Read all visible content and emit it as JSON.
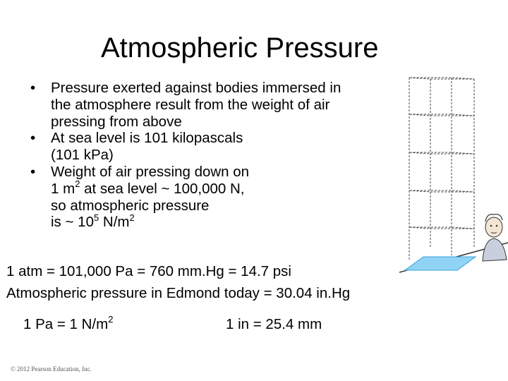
{
  "slide": {
    "title": "Atmospheric Pressure",
    "bullets": [
      {
        "lines": [
          "Pressure exerted against bodies immersed in",
          "the atmosphere result from the weight of air",
          "pressing from above"
        ]
      },
      {
        "lines": [
          "At sea level is 101 kilopascals",
          "(101 kPa)"
        ]
      },
      {
        "line1": "Weight of air pressing down on",
        "line2_a": "1 m",
        "line2_sup": "2",
        "line2_b": " at sea level ~ 100,000 N,",
        "line3": "so atmospheric pressure",
        "line4_a": "is ~ 10",
        "line4_sup": "5",
        "line4_b": " N/m",
        "line4_sup2": "2"
      }
    ],
    "equation_1": "1 atm = 101,000 Pa = 760 mm.Hg = 14.7 psi",
    "equation_2": "Atmospheric pressure in Edmond today = 30.04 in.Hg",
    "conversion_1_a": "1 Pa = 1 N/m",
    "conversion_1_sup": "2",
    "conversion_2": "1 in = 25.4 mm",
    "copyright": "© 2012 Pearson Education, Inc."
  }
}
